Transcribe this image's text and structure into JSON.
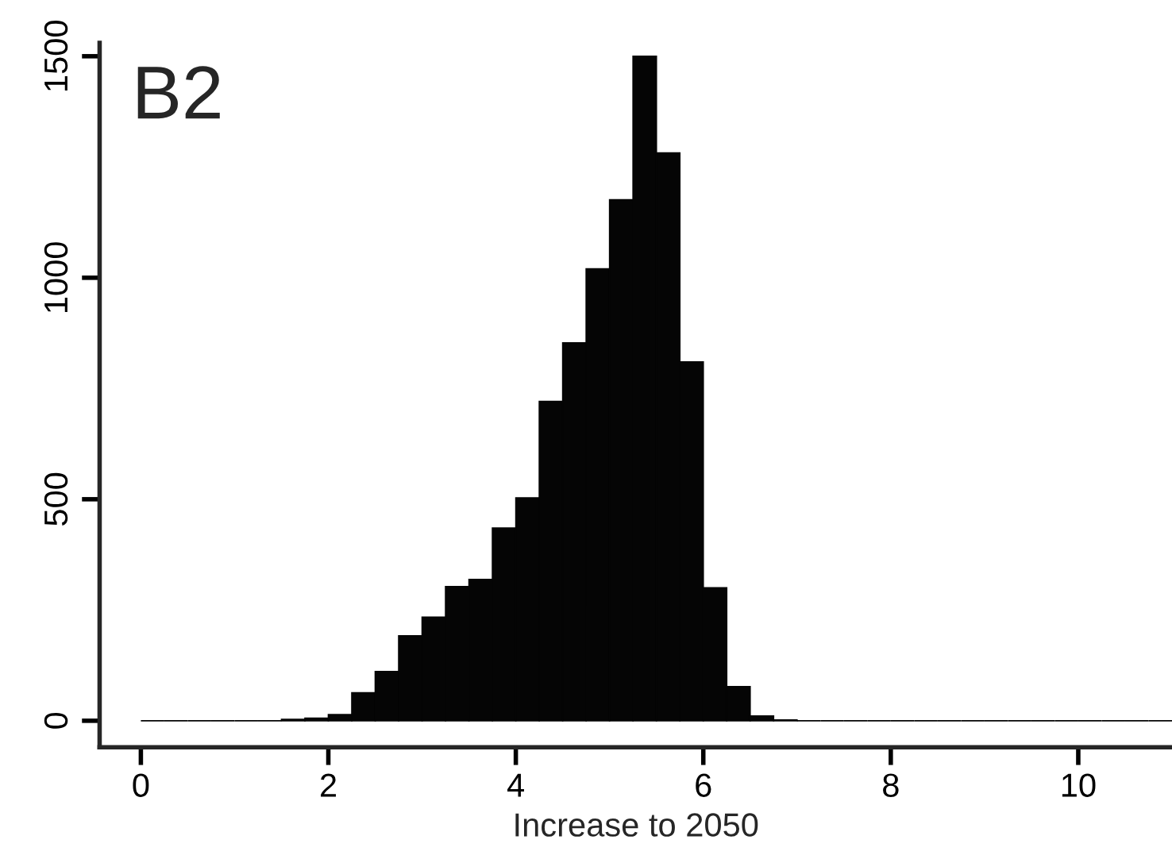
{
  "chart_data": {
    "type": "histogram",
    "title": "B2",
    "xlabel": "Increase to 2050",
    "bins": [
      0,
      0.25,
      0.5,
      0.75,
      1,
      1.25,
      1.5,
      1.75,
      2,
      2.25,
      2.5,
      2.75,
      3,
      3.25,
      3.5,
      3.75,
      4,
      4.25,
      4.5,
      4.75,
      5,
      5.25,
      5.5,
      5.75,
      6,
      6.25,
      6.5,
      6.75,
      7,
      7.25,
      7.5,
      7.75,
      8,
      8.25,
      8.5,
      8.75,
      9,
      9.25,
      9.5,
      9.75,
      10,
      10.25,
      10.5,
      10.75,
      11
    ],
    "values": [
      0,
      0,
      0,
      0,
      0,
      0,
      3,
      6,
      14,
      63,
      111,
      192,
      234,
      303,
      319,
      435,
      503,
      721,
      853,
      1020,
      1176,
      1500,
      1282,
      810,
      300,
      77,
      11,
      2,
      0,
      0,
      0,
      0,
      0,
      0,
      0,
      0,
      0,
      0,
      0,
      0,
      0,
      0,
      0,
      0
    ],
    "color": "#050505",
    "xlim": [
      -0.44,
      11.0
    ],
    "ylim": [
      -60,
      1530
    ],
    "xticks": [
      0,
      2,
      4,
      6,
      8,
      10
    ],
    "yticks": [
      0,
      500,
      1000,
      1500
    ],
    "grid": false
  }
}
